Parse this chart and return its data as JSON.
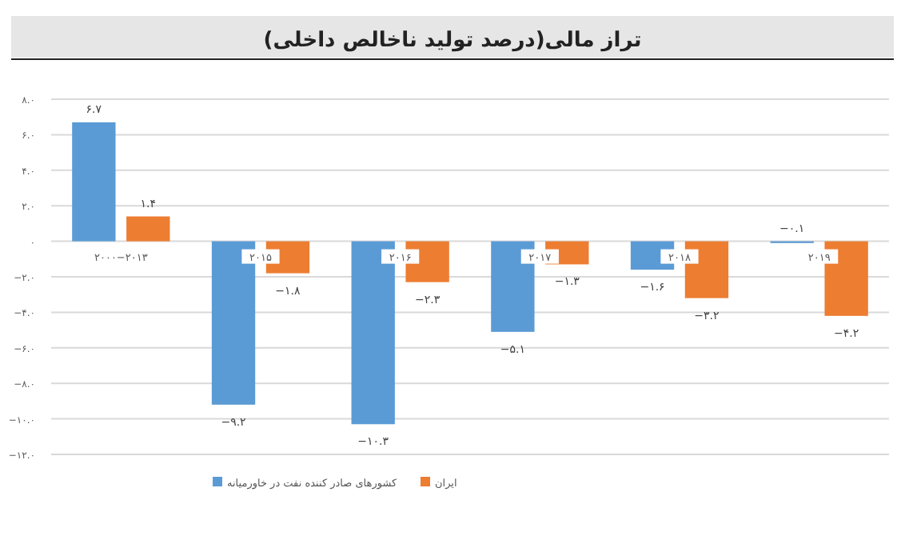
{
  "chart_data": {
    "type": "bar",
    "title": "تراز مالی(درصد تولید ناخالص داخلی)",
    "categories": [
      "۲۰۰۰−۲۰۱۳",
      "۲۰۱۵",
      "۲۰۱۶",
      "۲۰۱۷",
      "۲۰۱۸",
      "۲۰۱۹"
    ],
    "series": [
      {
        "name": "کشورهای صادر کننده نفت در خاورمیانه",
        "color": "#5b9bd5",
        "values": [
          6.7,
          -9.2,
          -10.3,
          -5.1,
          -1.6,
          -0.1
        ],
        "value_labels": [
          "۶.۷",
          "−۹.۲",
          "−۱۰.۳",
          "−۵.۱",
          "−۱.۶",
          "−۰.۱"
        ]
      },
      {
        "name": "ایران",
        "color": "#ed7d31",
        "values": [
          1.4,
          -1.8,
          -2.3,
          -1.3,
          -3.2,
          -4.2
        ],
        "value_labels": [
          "۱.۴",
          "−۱.۸",
          "−۲.۳",
          "−۱.۳",
          "−۳.۲",
          "−۴.۲"
        ]
      }
    ],
    "ylim": [
      -12,
      8
    ],
    "yticks": [
      {
        "value": 8,
        "label": "۸.۰"
      },
      {
        "value": 6,
        "label": "۶.۰"
      },
      {
        "value": 4,
        "label": "۴.۰"
      },
      {
        "value": 2,
        "label": "۲.۰"
      },
      {
        "value": 0,
        "label": "۰"
      },
      {
        "value": -2,
        "label": "−۲.۰"
      },
      {
        "value": -4,
        "label": "−۴.۰"
      },
      {
        "value": -6,
        "label": "−۶.۰"
      },
      {
        "value": -8,
        "label": "−۸.۰"
      },
      {
        "value": -10,
        "label": "−۱۰.۰"
      },
      {
        "value": -12,
        "label": "−۱۲.۰"
      }
    ],
    "grid": "y",
    "legend": "bottom"
  }
}
